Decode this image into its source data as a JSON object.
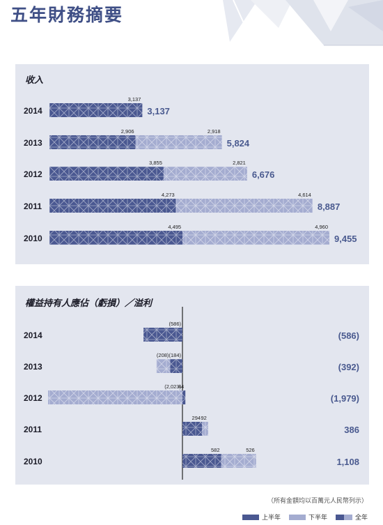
{
  "page_title": "五年財務摘要",
  "colors": {
    "first_half": "#4a5891",
    "second_half": "#a4acd0",
    "full_year": "#4a5a8f",
    "panel": "#e3e6ef"
  },
  "chart_data": [
    {
      "type": "bar",
      "stacked": true,
      "orientation": "horizontal",
      "title": "收入",
      "categories": [
        "2014",
        "2013",
        "2012",
        "2011",
        "2010"
      ],
      "series": [
        {
          "name": "上半年",
          "values": [
            3137,
            2906,
            3855,
            4273,
            4495
          ],
          "labels": [
            "3,137",
            "2,906",
            "3,855",
            "4,273",
            "4,495"
          ]
        },
        {
          "name": "下半年",
          "values": [
            null,
            2918,
            2821,
            4614,
            4960
          ],
          "labels": [
            "",
            "2,918",
            "2,821",
            "4,614",
            "4,960"
          ]
        }
      ],
      "totals": [
        "3,137",
        "5,824",
        "6,676",
        "8,887",
        "9,455"
      ],
      "xlim": [
        0,
        9455
      ]
    },
    {
      "type": "bar",
      "orientation": "horizontal",
      "title": "權益持有人應佔（虧損）／溢利",
      "categories": [
        "2014",
        "2013",
        "2012",
        "2011",
        "2010"
      ],
      "series": [
        {
          "name": "上半年",
          "values": [
            -586,
            -184,
            44,
            294,
            582
          ],
          "labels": [
            "(586)",
            "(184)",
            "44",
            "294",
            "582"
          ]
        },
        {
          "name": "下半年",
          "values": [
            null,
            -208,
            -2023,
            92,
            526
          ],
          "labels": [
            "",
            "(208)",
            "(2,023)",
            "92",
            "526"
          ]
        }
      ],
      "totals": [
        "(586)",
        "(392)",
        "(1,979)",
        "386",
        "1,108"
      ],
      "xlim": [
        -2023,
        1108
      ]
    }
  ],
  "footnote": "（所有金額均以百萬元人民幣列示）",
  "legend": {
    "first_half": "上半年",
    "second_half": "下半年",
    "full_year": "全年"
  }
}
